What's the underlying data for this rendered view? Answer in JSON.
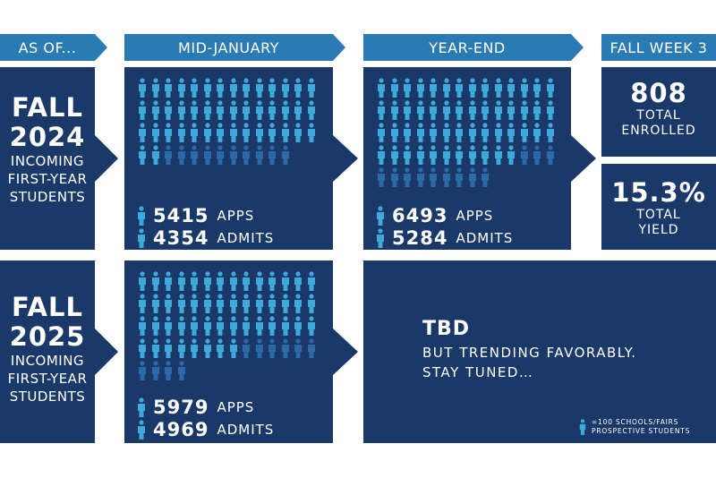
{
  "headers": {
    "as_of": "AS OF...",
    "mid_january": "MID-JANUARY",
    "year_end": "YEAR-END",
    "fall_week_3": "FALL WEEK 3"
  },
  "rows": [
    {
      "fall": "FALL",
      "year": "2024",
      "sub1": "INCOMING",
      "sub2": "FIRST-YEAR",
      "sub3": "STUDENTS",
      "mid_january": {
        "apps": "5415",
        "admits": "4354",
        "apps_label": "APPS",
        "admits_label": "ADMITS",
        "apps_icons": 54,
        "admits_icons": 44
      },
      "year_end": {
        "apps": "6493",
        "admits": "5284",
        "apps_label": "APPS",
        "admits_label": "ADMITS",
        "apps_icons": 65,
        "admits_icons": 53
      },
      "fall_week_3": {
        "enrolled": "808",
        "enrolled_label1": "TOTAL",
        "enrolled_label2": "ENROLLED",
        "yield": "15.3%",
        "yield_label1": "TOTAL",
        "yield_label2": "YIELD"
      }
    },
    {
      "fall": "FALL",
      "year": "2025",
      "sub1": "INCOMING",
      "sub2": "FIRST-YEAR",
      "sub3": "STUDENTS",
      "mid_january": {
        "apps": "5979",
        "admits": "4969",
        "apps_label": "APPS",
        "admits_label": "ADMITS",
        "apps_icons": 60,
        "admits_icons": 50
      },
      "tbd": {
        "title": "TBD",
        "line1": "BUT TRENDING FAVORABLY.",
        "line2": "STAY TUNED…"
      }
    }
  ],
  "legend": {
    "line1": "=100 SCHOOLS/FAIRS",
    "line2": "PROSPECTIVE STUDENTS"
  },
  "colors": {
    "light": "#3fa9dc",
    "dark": "#2c6aa7",
    "panel": "#1a3868",
    "header": "#2a7ab4"
  }
}
